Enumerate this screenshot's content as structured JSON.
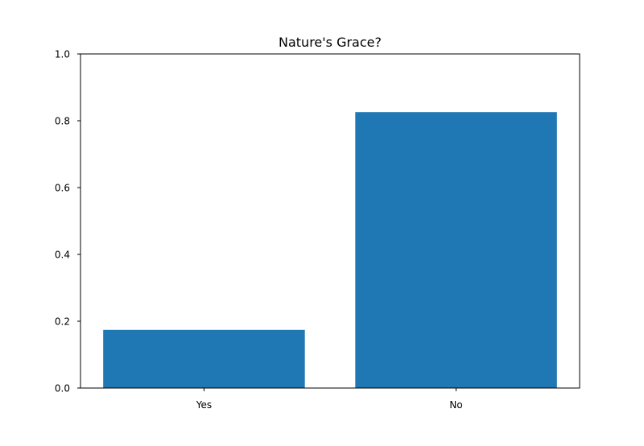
{
  "chart_data": {
    "type": "bar",
    "title": "Nature's Grace?",
    "categories": [
      "Yes",
      "No"
    ],
    "values": [
      0.174,
      0.826
    ],
    "xlabel": "",
    "ylabel": "",
    "ylim": [
      0,
      1.0
    ],
    "yticks": [
      "0.0",
      "0.2",
      "0.4",
      "0.6",
      "0.8",
      "1.0"
    ],
    "grid": false,
    "bar_color": "#1f77b4"
  }
}
